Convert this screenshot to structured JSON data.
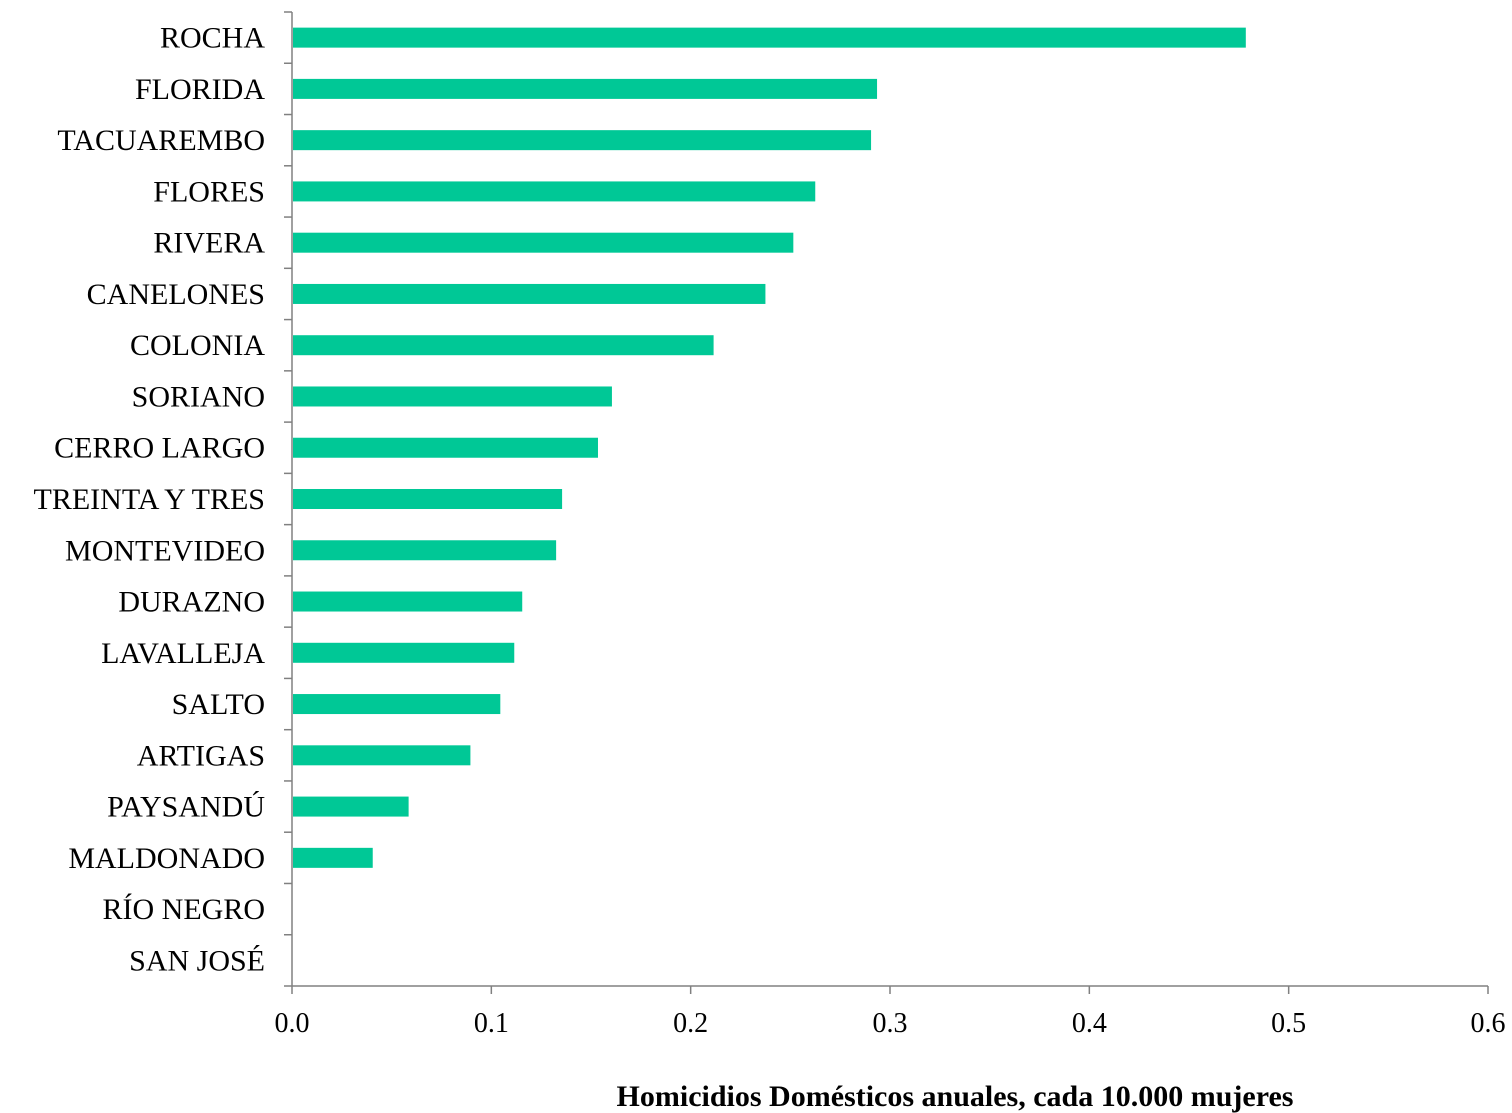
{
  "chart_data": {
    "type": "bar",
    "orientation": "horizontal",
    "categories": [
      "ROCHA",
      "FLORIDA",
      "TACUAREMBO",
      "FLORES",
      "RIVERA",
      "CANELONES",
      "COLONIA",
      "SORIANO",
      "CERRO LARGO",
      "TREINTA Y TRES",
      "MONTEVIDEO",
      "DURAZNO",
      "LAVALLEJA",
      "SALTO",
      "ARTIGAS",
      "PAYSANDÚ",
      "MALDONADO",
      "RÍO NEGRO",
      "SAN JOSÉ"
    ],
    "values": [
      0.478,
      0.293,
      0.29,
      0.262,
      0.251,
      0.237,
      0.211,
      0.16,
      0.153,
      0.135,
      0.132,
      0.115,
      0.111,
      0.104,
      0.089,
      0.058,
      0.04,
      0,
      0
    ],
    "xlabel": "Homicidios Domésticos anuales, cada 10.000 mujeres",
    "xlim": [
      0,
      0.6
    ],
    "xticks": [
      0,
      0.1,
      0.2,
      0.3,
      0.4,
      0.5,
      0.6
    ],
    "xtick_labels": [
      "0.0",
      "0.1",
      "0.2",
      "0.3",
      "0.4",
      "0.5",
      "0.6"
    ],
    "bar_color": "#00c896",
    "axis_color": "#808080",
    "grid": false,
    "legend": "none"
  }
}
